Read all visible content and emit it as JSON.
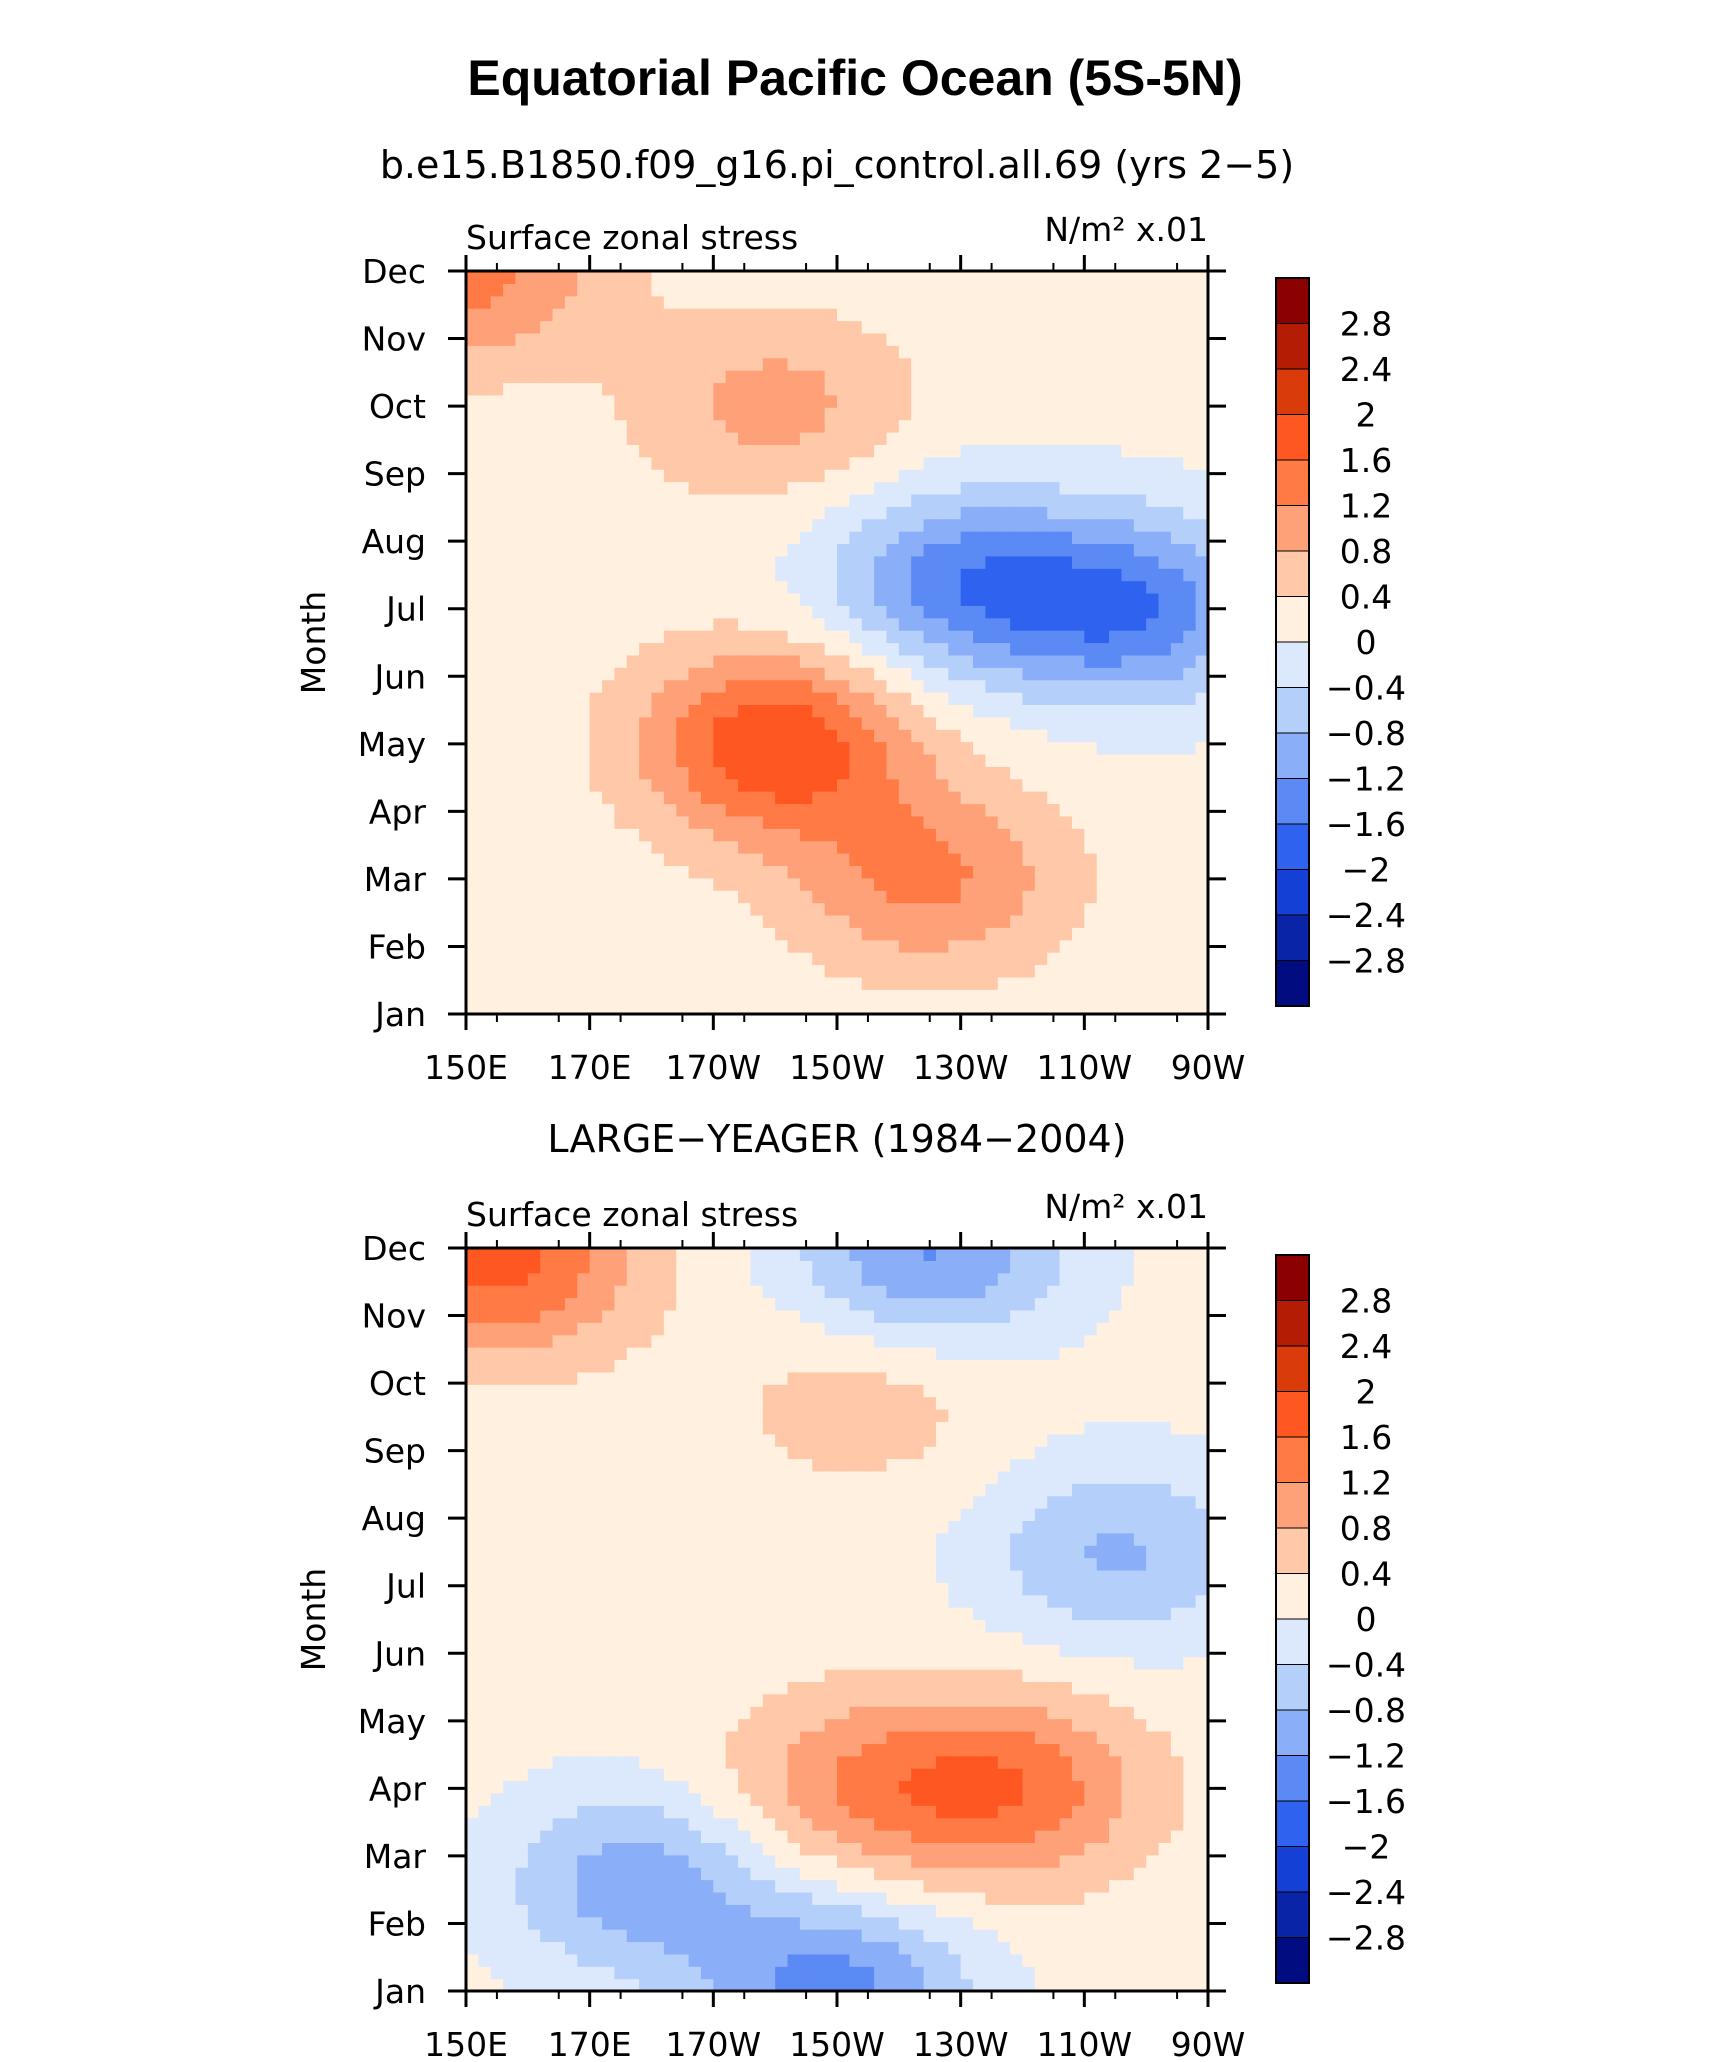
{
  "figure": {
    "title": "Equatorial Pacific Ocean (5S-5N)"
  },
  "colorbar": {
    "labels": [
      "2.8",
      "2.4",
      "2",
      "1.6",
      "1.2",
      "0.8",
      "0.4",
      "0",
      "−0.4",
      "−0.8",
      "−1.2",
      "−1.6",
      "−2",
      "−2.4",
      "−2.8"
    ],
    "colors": [
      "#8b0000",
      "#b51c04",
      "#d93b0a",
      "#ff5722",
      "#ff7a45",
      "#ffa178",
      "#ffc8a8",
      "#fff0e0",
      "#dce9fd",
      "#b5cffb",
      "#8aaef8",
      "#5b8af5",
      "#2f63ef",
      "#1440d6",
      "#0a24a8",
      "#000c80"
    ]
  },
  "chart_data": [
    {
      "type": "heatmap",
      "title": "b.e15.B1850.f09_g16.pi_control.all.69 (yrs 2−5)",
      "left_label": "Surface zonal stress",
      "right_label": "N/m² x.01",
      "ylabel": "Month",
      "xlabel": "",
      "x_ticks": [
        "150E",
        "170E",
        "170W",
        "150W",
        "130W",
        "110W",
        "90W"
      ],
      "y_ticks": [
        "Jan",
        "Feb",
        "Mar",
        "Apr",
        "May",
        "Jun",
        "Jul",
        "Aug",
        "Sep",
        "Oct",
        "Nov",
        "Dec"
      ],
      "x_range": [
        "150E",
        "90W"
      ],
      "levels": [
        -2.8,
        -2.4,
        -2,
        -1.6,
        -1.2,
        -0.8,
        -0.4,
        0,
        0.4,
        0.8,
        1.2,
        1.6,
        2,
        2.4,
        2.8
      ],
      "features": [
        {
          "lon": 200,
          "month": 5.0,
          "value": 1.8
        },
        {
          "lon": 230,
          "month": 7.4,
          "value": -1.5
        },
        {
          "lon": 258,
          "month": 7.0,
          "value": -1.6
        },
        {
          "lon": 225,
          "month": 3.0,
          "value": 1.1
        },
        {
          "lon": 200,
          "month": 10.0,
          "value": 0.8
        },
        {
          "lon": 150,
          "month": 12.0,
          "value": 1.2
        }
      ]
    },
    {
      "type": "heatmap",
      "title": "LARGE−YEAGER (1984−2004)",
      "left_label": "Surface zonal stress",
      "right_label": "N/m² x.01",
      "ylabel": "Month",
      "xlabel": "",
      "x_ticks": [
        "150E",
        "170E",
        "170W",
        "150W",
        "130W",
        "110W",
        "90W"
      ],
      "y_ticks": [
        "Jan",
        "Feb",
        "Mar",
        "Apr",
        "May",
        "Jun",
        "Jul",
        "Aug",
        "Sep",
        "Oct",
        "Nov",
        "Dec"
      ],
      "x_range": [
        "150E",
        "90W"
      ],
      "levels": [
        -2.8,
        -2.4,
        -2,
        -1.6,
        -1.2,
        -0.8,
        -0.4,
        0,
        0.4,
        0.8,
        1.2,
        1.6,
        2,
        2.4,
        2.8
      ],
      "features": [
        {
          "lon": 155,
          "month": 11.8,
          "value": 1.6
        },
        {
          "lon": 215,
          "month": 9.8,
          "value": 0.5
        },
        {
          "lon": 238,
          "month": 4.0,
          "value": 1.3
        },
        {
          "lon": 212,
          "month": 4.0,
          "value": 0.9
        },
        {
          "lon": 178,
          "month": 2.6,
          "value": -1.2
        },
        {
          "lon": 210,
          "month": 1.0,
          "value": -1.5
        },
        {
          "lon": 225,
          "month": 11.9,
          "value": -1.4
        },
        {
          "lon": 255,
          "month": 7.5,
          "value": -1.0
        }
      ]
    }
  ]
}
